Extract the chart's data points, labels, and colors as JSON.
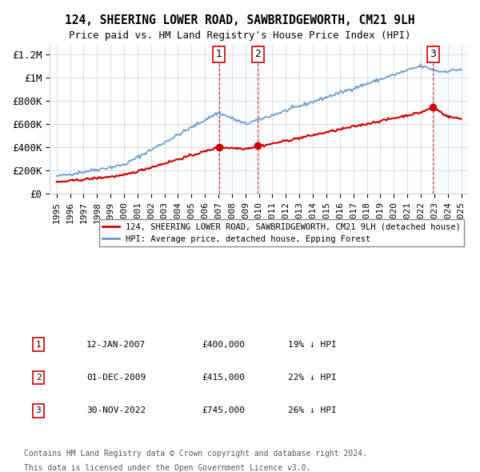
{
  "title_line1": "124, SHEERING LOWER ROAD, SAWBRIDGEWORTH, CM21 9LH",
  "title_line2": "Price paid vs. HM Land Registry's House Price Index (HPI)",
  "legend_label_red": "124, SHEERING LOWER ROAD, SAWBRIDGEWORTH, CM21 9LH (detached house)",
  "legend_label_blue": "HPI: Average price, detached house, Epping Forest",
  "transactions": [
    {
      "num": 1,
      "date": "12-JAN-2007",
      "price": 400000,
      "pct": "19%",
      "dir": "↓",
      "year_x": 2007.04
    },
    {
      "num": 2,
      "date": "01-DEC-2009",
      "price": 415000,
      "pct": "22%",
      "dir": "↓",
      "year_x": 2009.92
    },
    {
      "num": 3,
      "date": "30-NOV-2022",
      "price": 745000,
      "pct": "26%",
      "dir": "↓",
      "year_x": 2022.92
    }
  ],
  "ylabel_ticks": [
    0,
    200000,
    400000,
    600000,
    800000,
    1000000,
    1200000
  ],
  "ylabel_labels": [
    "£0",
    "£200K",
    "£400K",
    "£600K",
    "£800K",
    "£1M",
    "£1.2M"
  ],
  "xlim": [
    1994.5,
    2025.5
  ],
  "ylim": [
    0,
    1280000
  ],
  "background_color": "#ffffff",
  "grid_color": "#cccccc",
  "red_color": "#cc0000",
  "blue_color": "#6699cc",
  "shade_color": "#ddeeff",
  "footnote_line1": "Contains HM Land Registry data © Crown copyright and database right 2024.",
  "footnote_line2": "This data is licensed under the Open Government Licence v3.0."
}
